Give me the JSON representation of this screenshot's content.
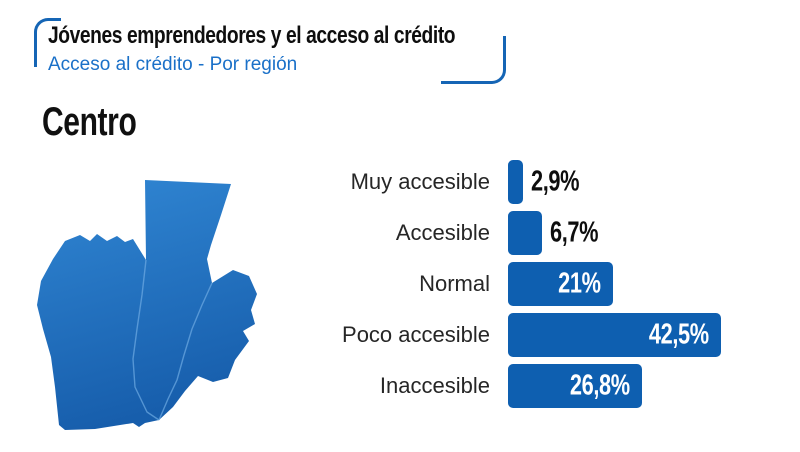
{
  "header": {
    "title": "Jóvenes emprendedores y el acceso al crédito",
    "subtitle": "Acceso al crédito - Por región",
    "accent_color": "#1565b5"
  },
  "region": {
    "name": "Centro",
    "map_icon": "centro-region-map",
    "map_gradient_top": "#3187d4",
    "map_gradient_bottom": "#175eac"
  },
  "chart_data": {
    "type": "bar",
    "orientation": "horizontal",
    "title": "Centro",
    "categories": [
      "Muy accesible",
      "Accesible",
      "Normal",
      "Poco accesible",
      "Inaccesible"
    ],
    "values": [
      2.9,
      6.7,
      21,
      42.5,
      26.8
    ],
    "value_labels": [
      "2,9%",
      "6,7%",
      "21%",
      "42,5%",
      "26,8%"
    ],
    "bar_color": "#0e5fb0",
    "value_label_inside_color": "#ffffff",
    "value_label_outside_color": "#0e0e0e",
    "grid": false,
    "legend": "none"
  }
}
